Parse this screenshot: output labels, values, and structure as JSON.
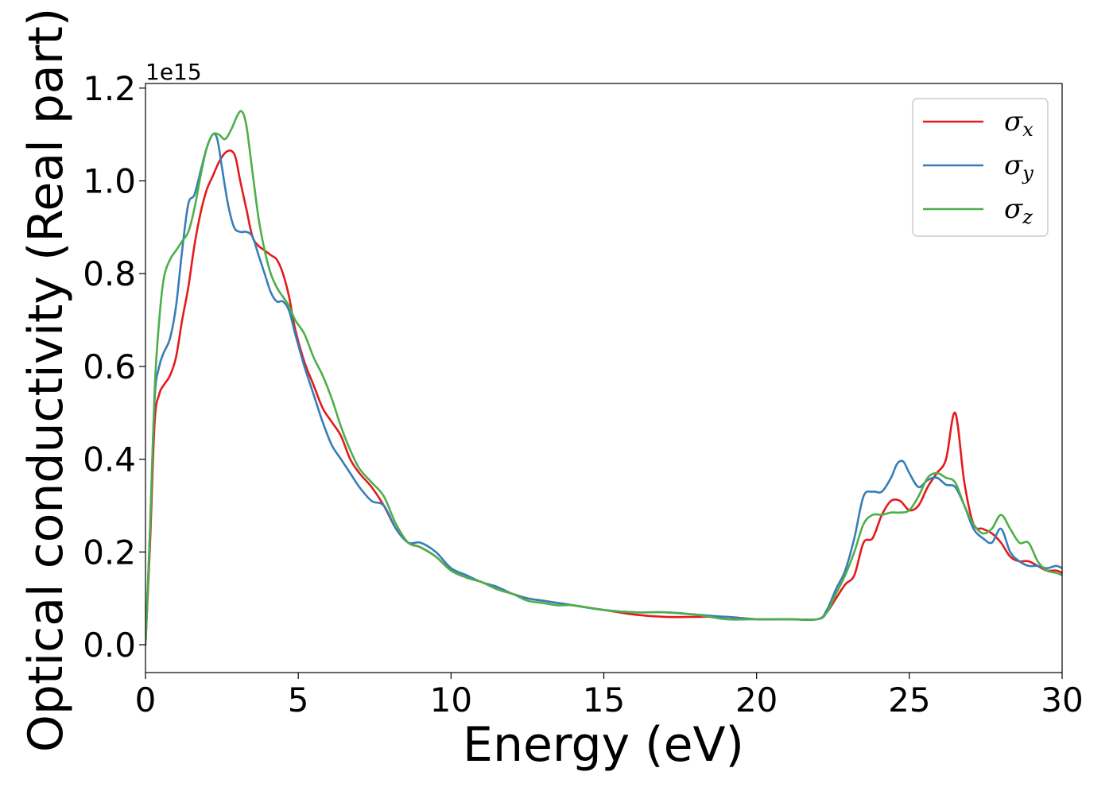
{
  "chart_data": {
    "type": "line",
    "title": "",
    "xlabel": "Energy (eV)",
    "ylabel": "Optical conductivity (Real part)",
    "y_offset_label": "1e15",
    "xlim": [
      0,
      30
    ],
    "ylim": [
      -0.06,
      1.21
    ],
    "xticks": [
      0,
      5,
      10,
      15,
      20,
      25,
      30
    ],
    "xtick_labels": [
      "0",
      "5",
      "10",
      "15",
      "20",
      "25",
      "30"
    ],
    "yticks": [
      0.0,
      0.2,
      0.4,
      0.6,
      0.8,
      1.0,
      1.2
    ],
    "ytick_labels": [
      "0.0",
      "0.2",
      "0.4",
      "0.6",
      "0.8",
      "1.0",
      "1.2"
    ],
    "grid": false,
    "legend_position": "top-right",
    "series": [
      {
        "name": "σ_x",
        "symbol": "σ",
        "subscript": "x",
        "color": "#e41a1c",
        "x": [
          0.0,
          0.15,
          0.3,
          0.45,
          0.6,
          0.8,
          1.0,
          1.2,
          1.4,
          1.6,
          1.8,
          2.0,
          2.2,
          2.4,
          2.6,
          2.8,
          2.95,
          3.1,
          3.3,
          3.5,
          3.7,
          3.9,
          4.1,
          4.3,
          4.5,
          4.7,
          4.9,
          5.2,
          5.5,
          5.8,
          6.1,
          6.4,
          6.7,
          7.0,
          7.4,
          7.8,
          8.2,
          8.6,
          9.0,
          9.5,
          10.0,
          10.5,
          11.0,
          11.5,
          12.0,
          12.5,
          13.0,
          13.5,
          14.0,
          15.0,
          16.0,
          17.0,
          18.0,
          19.0,
          20.0,
          21.0,
          22.0,
          22.3,
          22.6,
          22.9,
          23.2,
          23.5,
          23.8,
          24.1,
          24.4,
          24.7,
          25.0,
          25.3,
          25.6,
          25.9,
          26.2,
          26.5,
          26.8,
          27.1,
          27.4,
          27.7,
          28.0,
          28.3,
          28.6,
          28.9,
          29.2,
          29.5,
          29.8,
          30.0
        ],
        "values": [
          0.0,
          0.22,
          0.48,
          0.54,
          0.56,
          0.58,
          0.62,
          0.7,
          0.77,
          0.86,
          0.93,
          0.98,
          1.01,
          1.04,
          1.06,
          1.065,
          1.05,
          1.0,
          0.94,
          0.88,
          0.86,
          0.85,
          0.84,
          0.83,
          0.8,
          0.75,
          0.68,
          0.61,
          0.56,
          0.51,
          0.48,
          0.45,
          0.4,
          0.37,
          0.34,
          0.3,
          0.25,
          0.22,
          0.21,
          0.19,
          0.16,
          0.145,
          0.135,
          0.12,
          0.11,
          0.1,
          0.095,
          0.09,
          0.085,
          0.075,
          0.065,
          0.06,
          0.06,
          0.06,
          0.055,
          0.055,
          0.055,
          0.07,
          0.1,
          0.13,
          0.15,
          0.22,
          0.23,
          0.28,
          0.31,
          0.31,
          0.29,
          0.3,
          0.34,
          0.37,
          0.4,
          0.5,
          0.35,
          0.26,
          0.25,
          0.24,
          0.22,
          0.19,
          0.18,
          0.18,
          0.17,
          0.16,
          0.16,
          0.155
        ]
      },
      {
        "name": "σ_y",
        "symbol": "σ",
        "subscript": "y",
        "color": "#377eb8",
        "x": [
          0.0,
          0.15,
          0.3,
          0.45,
          0.6,
          0.8,
          1.0,
          1.2,
          1.4,
          1.6,
          1.8,
          2.0,
          2.2,
          2.35,
          2.5,
          2.7,
          2.9,
          3.1,
          3.3,
          3.5,
          3.7,
          3.9,
          4.1,
          4.3,
          4.5,
          4.7,
          4.9,
          5.2,
          5.5,
          5.8,
          6.1,
          6.4,
          6.7,
          7.0,
          7.4,
          7.8,
          8.2,
          8.6,
          9.0,
          9.5,
          10.0,
          10.5,
          11.0,
          11.5,
          12.0,
          12.5,
          13.0,
          13.5,
          14.0,
          15.0,
          16.0,
          17.0,
          18.0,
          19.0,
          20.0,
          21.0,
          22.0,
          22.3,
          22.6,
          22.9,
          23.2,
          23.5,
          23.8,
          24.1,
          24.4,
          24.6,
          24.8,
          25.0,
          25.3,
          25.6,
          25.9,
          26.2,
          26.5,
          26.8,
          27.1,
          27.4,
          27.7,
          28.0,
          28.3,
          28.6,
          28.9,
          29.2,
          29.5,
          29.8,
          30.0
        ],
        "values": [
          0.0,
          0.25,
          0.53,
          0.6,
          0.63,
          0.66,
          0.73,
          0.85,
          0.95,
          0.97,
          1.02,
          1.07,
          1.1,
          1.09,
          1.03,
          0.95,
          0.9,
          0.89,
          0.89,
          0.88,
          0.84,
          0.8,
          0.76,
          0.74,
          0.74,
          0.72,
          0.67,
          0.6,
          0.54,
          0.48,
          0.43,
          0.4,
          0.37,
          0.34,
          0.31,
          0.3,
          0.25,
          0.22,
          0.22,
          0.2,
          0.165,
          0.15,
          0.135,
          0.125,
          0.11,
          0.1,
          0.095,
          0.09,
          0.085,
          0.075,
          0.07,
          0.07,
          0.065,
          0.06,
          0.055,
          0.055,
          0.055,
          0.075,
          0.12,
          0.16,
          0.23,
          0.32,
          0.33,
          0.33,
          0.36,
          0.39,
          0.395,
          0.37,
          0.34,
          0.355,
          0.36,
          0.345,
          0.34,
          0.3,
          0.25,
          0.23,
          0.22,
          0.25,
          0.2,
          0.18,
          0.17,
          0.17,
          0.165,
          0.17,
          0.165
        ]
      },
      {
        "name": "σ_z",
        "symbol": "σ",
        "subscript": "z",
        "color": "#4daf4a",
        "x": [
          0.0,
          0.15,
          0.3,
          0.45,
          0.6,
          0.8,
          1.0,
          1.2,
          1.4,
          1.6,
          1.8,
          2.0,
          2.2,
          2.4,
          2.6,
          2.8,
          3.0,
          3.15,
          3.3,
          3.5,
          3.7,
          3.9,
          4.1,
          4.3,
          4.5,
          4.7,
          4.9,
          5.2,
          5.5,
          5.8,
          6.1,
          6.4,
          6.7,
          7.0,
          7.4,
          7.8,
          8.2,
          8.6,
          9.0,
          9.5,
          10.0,
          10.5,
          11.0,
          11.5,
          12.0,
          12.5,
          13.0,
          13.5,
          14.0,
          15.0,
          16.0,
          17.0,
          18.0,
          19.0,
          20.0,
          21.0,
          22.0,
          22.3,
          22.6,
          22.9,
          23.2,
          23.5,
          23.8,
          24.1,
          24.4,
          24.7,
          25.0,
          25.3,
          25.6,
          25.9,
          26.2,
          26.5,
          26.8,
          27.1,
          27.4,
          27.7,
          28.0,
          28.3,
          28.6,
          28.9,
          29.2,
          29.5,
          29.8,
          30.0
        ],
        "values": [
          0.0,
          0.25,
          0.55,
          0.7,
          0.79,
          0.83,
          0.85,
          0.87,
          0.89,
          0.94,
          1.01,
          1.07,
          1.1,
          1.1,
          1.09,
          1.11,
          1.14,
          1.15,
          1.12,
          1.02,
          0.92,
          0.85,
          0.8,
          0.77,
          0.75,
          0.73,
          0.7,
          0.67,
          0.62,
          0.58,
          0.53,
          0.47,
          0.42,
          0.38,
          0.35,
          0.32,
          0.26,
          0.22,
          0.21,
          0.19,
          0.16,
          0.145,
          0.135,
          0.12,
          0.11,
          0.095,
          0.09,
          0.085,
          0.085,
          0.075,
          0.07,
          0.07,
          0.065,
          0.055,
          0.055,
          0.055,
          0.055,
          0.07,
          0.11,
          0.15,
          0.2,
          0.26,
          0.28,
          0.28,
          0.285,
          0.285,
          0.29,
          0.32,
          0.36,
          0.37,
          0.36,
          0.35,
          0.3,
          0.26,
          0.24,
          0.25,
          0.28,
          0.25,
          0.22,
          0.22,
          0.18,
          0.16,
          0.155,
          0.15
        ]
      }
    ]
  }
}
